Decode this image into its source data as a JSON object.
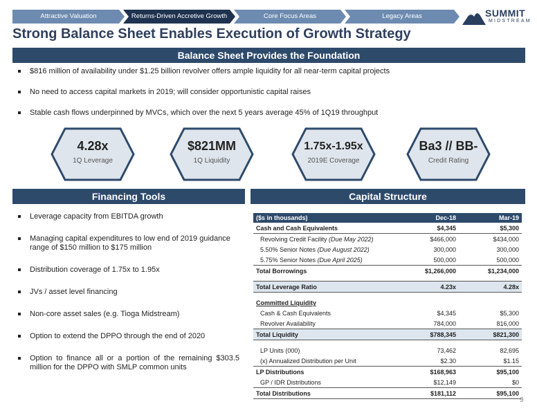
{
  "tabs": [
    "Attractive Valuation",
    "Returns-Driven Accretive Growth",
    "Core Focus Areas",
    "Legacy Areas"
  ],
  "logo": {
    "word1": "SUMMIT",
    "word2": "MIDSTREAM"
  },
  "title": "Strong Balance Sheet Enables Execution of Growth Strategy",
  "balance_band": "Balance Sheet Provides the Foundation",
  "top_bullets": [
    "$816 million of availability under $1.25 billion revolver offers ample liquidity for all near-term capital projects",
    "No need to access capital markets in 2019; will consider opportunistic capital raises",
    "Stable cash flows underpinned by MVCs, which over the next 5 years average 45% of 1Q19 throughput"
  ],
  "metrics": [
    {
      "value": "4.28x",
      "sub": "1Q Leverage"
    },
    {
      "value": "$821MM",
      "sub": "1Q Liquidity"
    },
    {
      "value": "1.75x-1.95x",
      "sub": "2019E Coverage"
    },
    {
      "value": "Ba3 // BB-",
      "sub": "Credit Rating"
    }
  ],
  "financing_band": "Financing Tools",
  "financing_bullets": [
    "Leverage capacity from EBITDA growth",
    "Managing capital expenditures to low end of 2019 guidance range of $150 million to $175 million",
    "Distribution coverage of 1.75x to 1.95x",
    "JVs / asset level financing",
    "Non-core asset sales (e.g. Tioga Midstream)",
    "Option to extend the DPPO through the end of 2020",
    "Option to finance all or a portion of the remaining $303.5 million for the DPPO with SMLP common units"
  ],
  "capital_band": "Capital Structure",
  "table": {
    "header": [
      "($s in thousands)",
      "Dec-18",
      "Mar-19"
    ],
    "rows": [
      {
        "label": "Cash and Cash Equivalents",
        "c1": "$4,345",
        "c2": "$5,300",
        "style": "bold"
      },
      {
        "label": "Revolving Credit Facility",
        "note": "(Due May 2022)",
        "c1": "$466,000",
        "c2": "$434,000",
        "style": "ind"
      },
      {
        "label": "5.50% Senior Notes",
        "note": "(Due August 2022)",
        "c1": "300,000",
        "c2": "300,000",
        "style": "ind"
      },
      {
        "label": "5.75% Senior Notes",
        "note": "(Due April 2025)",
        "c1": "500,000",
        "c2": "500,000",
        "style": "ind"
      },
      {
        "label": "Total Borrowings",
        "c1": "$1,266,000",
        "c2": "$1,234,000",
        "style": "total"
      },
      {
        "label": "Total Leverage Ratio",
        "c1": "4.23x",
        "c2": "4.28x",
        "style": "shade"
      },
      {
        "label": "Committed Liquidity",
        "c1": "",
        "c2": "",
        "style": "underline"
      },
      {
        "label": "Cash & Cash Equivalents",
        "c1": "$4,345",
        "c2": "$5,300",
        "style": "ind"
      },
      {
        "label": "Revolver Availability",
        "c1": "784,000",
        "c2": "816,000",
        "style": "ind"
      },
      {
        "label": "Total Liquidity",
        "c1": "$788,345",
        "c2": "$821,300",
        "style": "shade"
      },
      {
        "label": "LP Units (000)",
        "c1": "73,462",
        "c2": "82,695",
        "style": "ind"
      },
      {
        "label": "(x) Annualized Distribution per Unit",
        "c1": "$2.30",
        "c2": "$1.15",
        "style": "ind"
      },
      {
        "label": "LP Distributions",
        "c1": "$168,963",
        "c2": "$95,100",
        "style": "total"
      },
      {
        "label": "GP / IDR Distributions",
        "c1": "$12,149",
        "c2": "$0",
        "style": "ind"
      },
      {
        "label": "Total Distributions",
        "c1": "$181,112",
        "c2": "$95,100",
        "style": "final"
      }
    ]
  },
  "page_number": "9",
  "colors": {
    "navy": "#2e4a6b",
    "tab_active": "#1f3350",
    "tab_inactive": "#6d8bb0",
    "hex_fill": "#dfe5ec"
  }
}
